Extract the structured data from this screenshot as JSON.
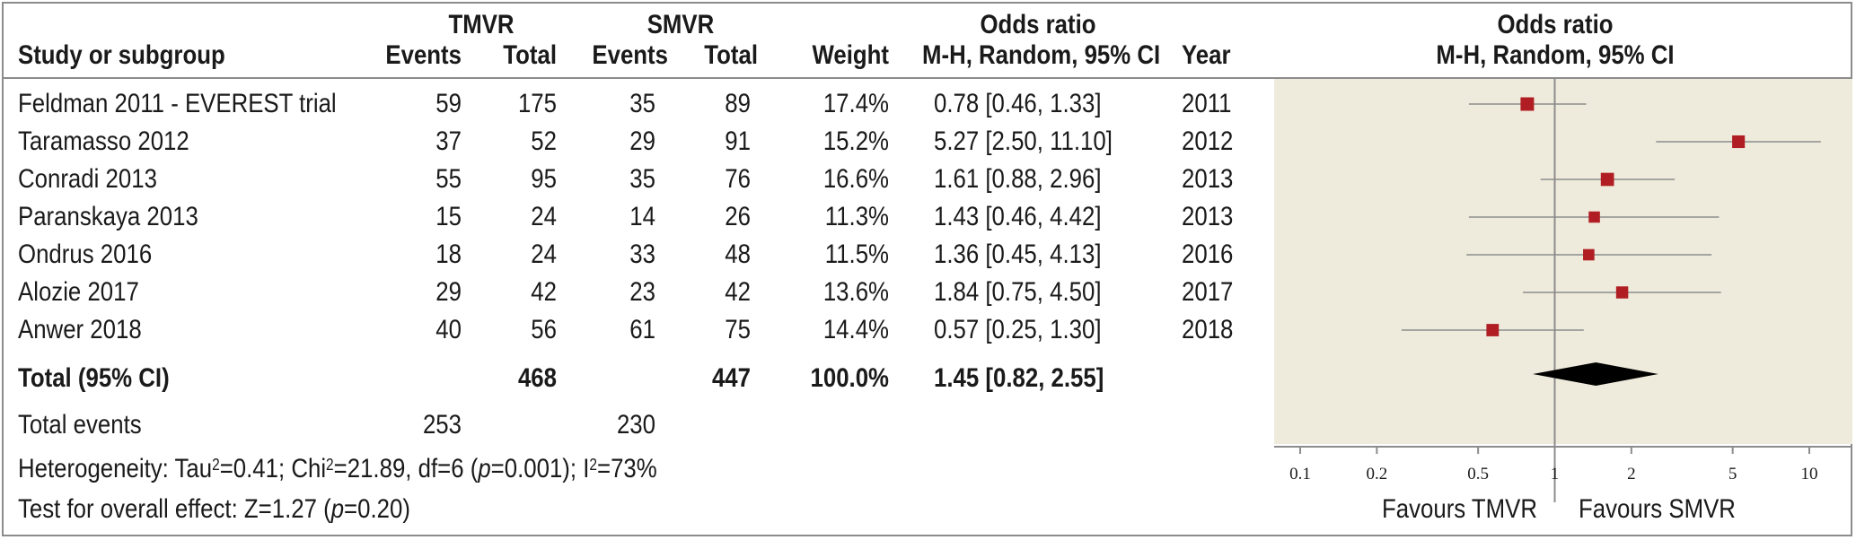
{
  "header": {
    "study": "Study or subgroup",
    "group1": "TMVR",
    "group2": "SMVR",
    "events": "Events",
    "total": "Total",
    "weight": "Weight",
    "or_title": "Odds ratio",
    "or_method": "M-H, Random, 95% CI",
    "year": "Year",
    "plot_title": "Odds ratio",
    "plot_method": "M-H, Random, 95% CI"
  },
  "rows": [
    {
      "study": "Feldman 2011 - EVEREST trial",
      "e1": "59",
      "t1": "175",
      "e2": "35",
      "t2": "89",
      "weight": "17.4%",
      "ci": "0.78 [0.46, 1.33]",
      "year": "2011"
    },
    {
      "study": "Taramasso 2012",
      "e1": "37",
      "t1": "52",
      "e2": "29",
      "t2": "91",
      "weight": "15.2%",
      "ci": "5.27 [2.50, 11.10]",
      "year": "2012"
    },
    {
      "study": "Conradi 2013",
      "e1": "55",
      "t1": "95",
      "e2": "35",
      "t2": "76",
      "weight": "16.6%",
      "ci": "1.61 [0.88, 2.96]",
      "year": "2013"
    },
    {
      "study": "Paranskaya 2013",
      "e1": "15",
      "t1": "24",
      "e2": "14",
      "t2": "26",
      "weight": "11.3%",
      "ci": "1.43 [0.46, 4.42]",
      "year": "2013"
    },
    {
      "study": "Ondrus 2016",
      "e1": "18",
      "t1": "24",
      "e2": "33",
      "t2": "48",
      "weight": "11.5%",
      "ci": "1.36 [0.45, 4.13]",
      "year": "2016"
    },
    {
      "study": "Alozie 2017",
      "e1": "29",
      "t1": "42",
      "e2": "23",
      "t2": "42",
      "weight": "13.6%",
      "ci": "1.84 [0.75, 4.50]",
      "year": "2017"
    },
    {
      "study": "Anwer 2018",
      "e1": "40",
      "t1": "56",
      "e2": "61",
      "t2": "75",
      "weight": "14.4%",
      "ci": "0.57 [0.25, 1.30]",
      "year": "2018"
    }
  ],
  "total": {
    "label": "Total (95% CI)",
    "t1": "468",
    "t2": "447",
    "weight": "100.0%",
    "ci": "1.45 [0.82, 2.55]"
  },
  "events_row": {
    "label": "Total events",
    "e1": "253",
    "e2": "230"
  },
  "heterogeneity": {
    "prefix": "Heterogeneity: Tau",
    "sup1": "2",
    "tau": "=0.41; Chi",
    "sup2": "2",
    "chi": "=21.89, df=6 (",
    "p_label": "p",
    "p_val": "=0.001); I",
    "sup3": "2",
    "i2": "=73%"
  },
  "overall": {
    "prefix": "Test for overall effect: Z=1.27 (",
    "p_label": "p",
    "suffix": "=0.20)"
  },
  "favours": {
    "left": "Favours TMVR",
    "right": "Favours SMVR"
  },
  "colors": {
    "marker": "#b01e23",
    "ci_line": "#8c8c8c",
    "panel_bg": "#efebdc",
    "rule": "#8c8c8c",
    "diamond": "#000000"
  },
  "chart_data": {
    "type": "forest",
    "scale": "log",
    "xlim": [
      0.1,
      10
    ],
    "x_ticks": [
      {
        "value": 0.1,
        "label": "0.1"
      },
      {
        "value": 0.2,
        "label": "0.2"
      },
      {
        "value": 0.5,
        "label": "0.5"
      },
      {
        "value": 1,
        "label": "1"
      },
      {
        "value": 2,
        "label": "2"
      },
      {
        "value": 5,
        "label": "5"
      },
      {
        "value": 10,
        "label": "10"
      }
    ],
    "reference_line": 1,
    "studies": [
      {
        "name": "Feldman 2011 - EVEREST trial",
        "or": 0.78,
        "lo": 0.46,
        "hi": 1.33,
        "weight": 17.4
      },
      {
        "name": "Taramasso 2012",
        "or": 5.27,
        "lo": 2.5,
        "hi": 11.1,
        "weight": 15.2
      },
      {
        "name": "Conradi 2013",
        "or": 1.61,
        "lo": 0.88,
        "hi": 2.96,
        "weight": 16.6
      },
      {
        "name": "Paranskaya 2013",
        "or": 1.43,
        "lo": 0.46,
        "hi": 4.42,
        "weight": 11.3
      },
      {
        "name": "Ondrus 2016",
        "or": 1.36,
        "lo": 0.45,
        "hi": 4.13,
        "weight": 11.5
      },
      {
        "name": "Alozie 2017",
        "or": 1.84,
        "lo": 0.75,
        "hi": 4.5,
        "weight": 13.6
      },
      {
        "name": "Anwer 2018",
        "or": 0.57,
        "lo": 0.25,
        "hi": 1.3,
        "weight": 14.4
      }
    ],
    "pooled": {
      "or": 1.45,
      "lo": 0.82,
      "hi": 2.55
    }
  }
}
